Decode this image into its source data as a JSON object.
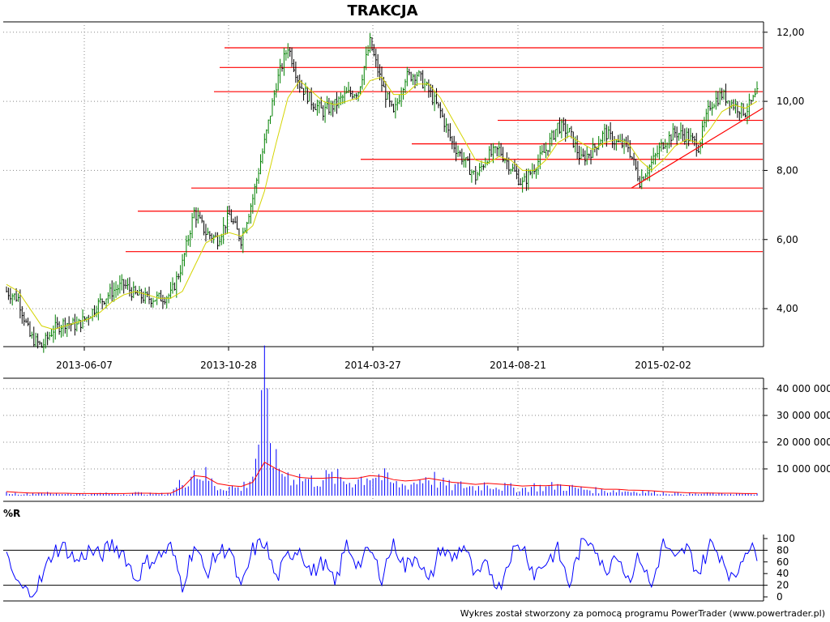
{
  "title": "TRAKCJA",
  "footer": "Wykres został stworzony za pomocą programu PowerTrader (www.powertrader.pl)",
  "colors": {
    "up_bar": "#008000",
    "down_bar": "#000000",
    "moving_average": "#d4d400",
    "support_resistance": "#ff0000",
    "volume_bar": "#0000ff",
    "volume_average": "#ff0000",
    "williams_r": "#0000ff",
    "level_lines": "#000000"
  },
  "chart_data": [
    {
      "type": "line",
      "panel": "price",
      "title": "TRAKCJA",
      "ylim": [
        2.9,
        12.3
      ],
      "y_ticks": [
        "4,00",
        "6,00",
        "8,00",
        "10,00",
        "12,00"
      ],
      "y_tick_values": [
        4,
        6,
        8,
        10,
        12
      ],
      "x_ticks": [
        "2013-06-07",
        "2013-10-28",
        "2014-03-27",
        "2014-08-21",
        "2015-02-02"
      ],
      "grid": true,
      "series": [
        {
          "values": [
            4.5,
            4.3,
            3.2,
            2.9,
            3.4,
            3.6,
            3.5,
            3.8,
            4.2,
            4.5,
            4.7,
            4.4,
            4.3,
            4.3,
            4.4,
            5.3,
            6.8,
            6.2,
            6.0,
            6.7,
            6.0,
            7.2,
            8.8,
            10.5,
            11.6,
            10.5,
            10.0,
            9.7,
            9.9,
            10.2,
            10.3,
            11.7,
            10.5,
            9.6,
            10.7,
            10.8,
            10.3,
            9.7,
            8.8,
            8.3,
            7.8,
            8.4,
            8.6,
            8.1,
            7.6,
            8.1,
            8.6,
            9.3,
            9.1,
            8.3,
            8.6,
            9.1,
            8.8,
            8.7,
            7.7,
            8.2,
            8.8,
            9.1,
            9.0,
            8.7,
            9.9,
            10.2,
            9.9,
            9.7,
            10.2
          ]
        },
        {
          "values": [
            4.7,
            4.5,
            4.0,
            3.5,
            3.4,
            3.5,
            3.6,
            3.7,
            3.9,
            4.2,
            4.4,
            4.5,
            4.4,
            4.3,
            4.3,
            4.5,
            5.2,
            5.9,
            6.1,
            6.2,
            6.1,
            6.4,
            7.4,
            8.8,
            10.1,
            10.6,
            10.3,
            10.0,
            9.9,
            10.0,
            10.1,
            10.6,
            10.7,
            10.2,
            10.2,
            10.5,
            10.5,
            10.1,
            9.5,
            8.9,
            8.3,
            8.2,
            8.4,
            8.3,
            8.0,
            8.0,
            8.3,
            8.8,
            9.0,
            8.8,
            8.6,
            8.8,
            8.9,
            8.8,
            8.3,
            8.0,
            8.3,
            8.7,
            8.9,
            8.8,
            9.2,
            9.7,
            9.9,
            9.8,
            10.0
          ]
        }
      ],
      "horizontal_levels": [
        11.55,
        10.98,
        10.28,
        9.45,
        8.77,
        8.32,
        7.49,
        6.82,
        5.65
      ],
      "trendline": {
        "from": [
          7.49
        ],
        "to": [
          9.8
        ]
      }
    },
    {
      "type": "bar",
      "panel": "volume",
      "y_ticks": [
        "10 000 000",
        "20 000 000",
        "30 000 000",
        "40 000 000"
      ],
      "y_tick_values": [
        10000000,
        20000000,
        30000000,
        40000000
      ],
      "ylim": [
        0,
        43000000
      ],
      "grid": true,
      "series": [
        {
          "values": [
            1.2,
            0.9,
            0.8,
            1.5,
            0.7,
            0.9,
            0.8,
            0.6,
            1.0,
            0.8,
            0.7,
            1.2,
            0.9,
            0.7,
            1.1,
            6.0,
            11.0,
            8.5,
            3.5,
            4.0,
            3.0,
            9.0,
            42.0,
            13.0,
            9.0,
            8.0,
            6.5,
            7.5,
            8.0,
            6.0,
            7.0,
            9.5,
            8.5,
            5.0,
            4.5,
            6.0,
            9.0,
            5.5,
            4.0,
            4.5,
            3.5,
            5.5,
            4.0,
            3.5,
            3.0,
            4.0,
            3.5,
            4.5,
            3.5,
            3.0,
            2.5,
            2.0,
            2.5,
            1.8,
            2.0,
            1.5,
            1.2,
            1.0,
            0.8,
            0.7,
            1.0,
            0.8,
            0.9,
            0.7,
            0.8
          ]
        },
        {
          "values": [
            1.5,
            1.2,
            1.0,
            1.0,
            0.9,
            0.9,
            0.8,
            0.8,
            0.8,
            0.8,
            0.8,
            0.9,
            0.9,
            0.8,
            0.9,
            3.0,
            7.5,
            7.0,
            4.5,
            3.8,
            3.4,
            5.0,
            12.5,
            10.0,
            8.0,
            6.8,
            6.5,
            6.5,
            6.8,
            6.4,
            6.6,
            7.5,
            7.2,
            6.0,
            5.5,
            5.8,
            6.5,
            5.8,
            5.0,
            4.7,
            4.2,
            4.6,
            4.3,
            4.0,
            3.6,
            3.8,
            3.7,
            4.0,
            3.7,
            3.3,
            2.9,
            2.4,
            2.4,
            2.1,
            2.0,
            1.8,
            1.5,
            1.3,
            1.1,
            1.0,
            1.0,
            0.9,
            0.9,
            0.8,
            0.8
          ]
        }
      ]
    },
    {
      "type": "line",
      "panel": "williams_r",
      "title": "%R",
      "ylim": [
        0,
        100
      ],
      "y_ticks": [
        "0",
        "20",
        "40",
        "60",
        "80",
        "100"
      ],
      "y_tick_values": [
        0,
        20,
        40,
        60,
        80,
        100
      ],
      "levels": [
        20,
        80
      ],
      "series": [
        {
          "values": [
            65,
            20,
            5,
            30,
            80,
            85,
            60,
            80,
            70,
            90,
            75,
            30,
            60,
            70,
            85,
            20,
            90,
            40,
            75,
            85,
            10,
            80,
            95,
            30,
            70,
            85,
            40,
            60,
            20,
            90,
            55,
            80,
            35,
            95,
            50,
            75,
            20,
            85,
            65,
            90,
            30,
            55,
            15,
            75,
            90,
            40,
            60,
            80,
            20,
            90,
            100,
            40,
            80,
            30,
            70,
            15,
            95,
            60,
            85,
            40,
            90,
            70,
            25,
            85,
            75
          ]
        }
      ]
    }
  ]
}
